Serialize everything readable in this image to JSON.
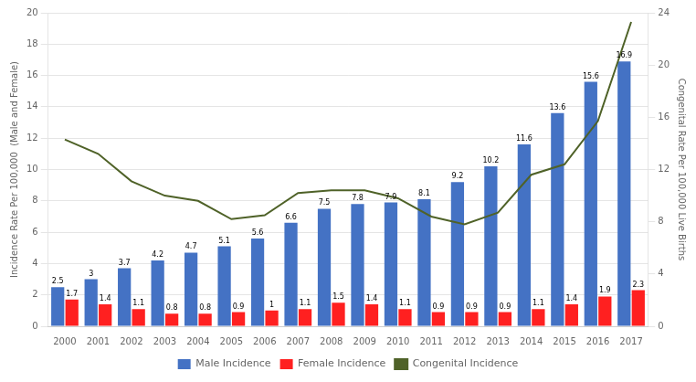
{
  "chart_data": {
    "type": "bar",
    "categories": [
      "2000",
      "2001",
      "2002",
      "2003",
      "2004",
      "2005",
      "2006",
      "2007",
      "2008",
      "2009",
      "2010",
      "2011",
      "2012",
      "2013",
      "2014",
      "2015",
      "2016",
      "2017"
    ],
    "series": [
      {
        "name": "Male Incidence",
        "type": "bar",
        "color": "#4472C4",
        "data_labels": true,
        "values": [
          2.5,
          3.0,
          3.7,
          4.2,
          4.7,
          5.1,
          5.6,
          6.6,
          7.5,
          7.8,
          7.9,
          8.1,
          9.2,
          10.2,
          11.6,
          13.6,
          15.6,
          16.9
        ]
      },
      {
        "name": "Female Incidence",
        "type": "bar",
        "color": "#FF2020",
        "data_labels": true,
        "values": [
          1.7,
          1.4,
          1.1,
          0.8,
          0.8,
          0.9,
          1.0,
          1.1,
          1.5,
          1.4,
          1.1,
          0.9,
          0.9,
          0.9,
          1.1,
          1.4,
          1.9,
          2.3
        ]
      },
      {
        "name": "Congenital Incidence",
        "type": "line",
        "color": "#4F6228",
        "axis": "y2",
        "values": [
          14.3,
          13.2,
          11.1,
          10.0,
          9.6,
          8.2,
          8.5,
          10.2,
          10.4,
          10.4,
          9.8,
          8.4,
          7.8,
          8.7,
          11.6,
          12.4,
          15.7,
          23.3
        ]
      }
    ],
    "ylabel": "Incidence Rate Per 100,000  (Male and Female)",
    "y2label": "Congenital Rate Per 100,000 Live Births",
    "ylim": [
      0,
      20
    ],
    "yticks": [
      0,
      2,
      4,
      6,
      8,
      10,
      12,
      14,
      16,
      18,
      20
    ],
    "y2lim": [
      0,
      24
    ],
    "y2ticks": [
      0,
      4,
      8,
      12,
      16,
      20,
      24
    ],
    "grid": true,
    "legend": "bottom"
  }
}
